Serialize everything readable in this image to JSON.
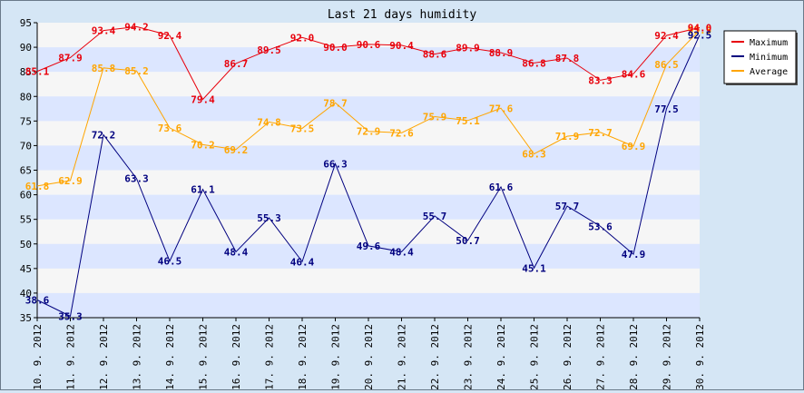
{
  "chart_data": {
    "type": "line",
    "title": "Last 21 days humidity",
    "xlabel": "",
    "ylabel": "",
    "ylim": [
      35,
      95
    ],
    "yticks": [
      35,
      40,
      45,
      50,
      55,
      60,
      65,
      70,
      75,
      80,
      85,
      90,
      95
    ],
    "grid": "alternating horizontal bands",
    "legend_position": "top-right",
    "categories": [
      "10. 9. 2012",
      "11. 9. 2012",
      "12. 9. 2012",
      "13. 9. 2012",
      "14. 9. 2012",
      "15. 9. 2012",
      "16. 9. 2012",
      "17. 9. 2012",
      "18. 9. 2012",
      "19. 9. 2012",
      "20. 9. 2012",
      "21. 9. 2012",
      "22. 9. 2012",
      "23. 9. 2012",
      "24. 9. 2012",
      "25. 9. 2012",
      "26. 9. 2012",
      "27. 9. 2012",
      "28. 9. 2012",
      "29. 9. 2012",
      "30. 9. 2012"
    ],
    "series": [
      {
        "name": "Maximum",
        "color": "#e8000b",
        "label_color": "#e8000b",
        "values": [
          85.1,
          87.9,
          93.4,
          94.2,
          92.4,
          79.4,
          86.7,
          89.5,
          92.0,
          90.0,
          90.6,
          90.4,
          88.6,
          89.9,
          88.9,
          86.8,
          87.8,
          83.3,
          84.6,
          92.4,
          94.0
        ]
      },
      {
        "name": "Minimum",
        "color": "#00007f",
        "label_color": "#00007f",
        "values": [
          38.6,
          35.3,
          72.2,
          63.3,
          46.5,
          61.1,
          48.4,
          55.3,
          46.4,
          66.3,
          49.6,
          48.4,
          55.7,
          50.7,
          61.6,
          45.1,
          57.7,
          53.6,
          47.9,
          77.5,
          92.5
        ]
      },
      {
        "name": "Average",
        "color": "#ffa500",
        "label_color": "#ffa500",
        "values": [
          61.8,
          62.9,
          85.8,
          85.2,
          73.6,
          70.2,
          69.2,
          74.8,
          73.5,
          78.7,
          72.9,
          72.6,
          75.9,
          75.1,
          77.6,
          68.3,
          71.9,
          72.7,
          69.9,
          86.5,
          93.5
        ]
      }
    ]
  }
}
